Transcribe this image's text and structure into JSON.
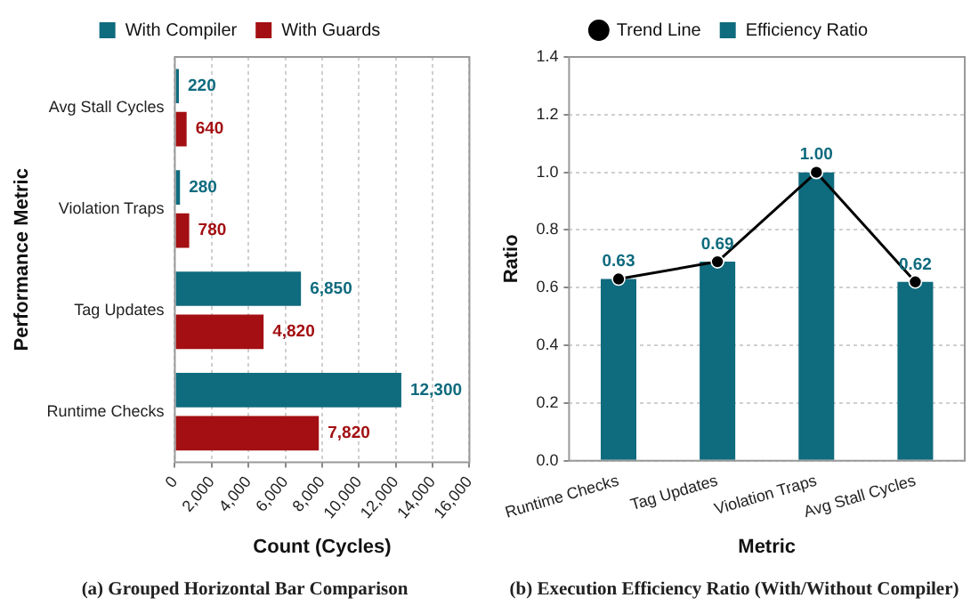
{
  "chart_data": [
    {
      "type": "bar",
      "orientation": "horizontal",
      "categories": [
        "Avg Stall Cycles",
        "Violation Traps",
        "Tag Updates",
        "Runtime Checks"
      ],
      "series": [
        {
          "name": "With Compiler",
          "color": "#0f6b7e",
          "values": [
            220,
            280,
            6850,
            12300
          ],
          "value_labels": [
            "220",
            "280",
            "6,850",
            "12,300"
          ]
        },
        {
          "name": "With Guards",
          "color": "#a30f12",
          "values": [
            640,
            780,
            4820,
            7820
          ],
          "value_labels": [
            "640",
            "780",
            "4,820",
            "7,820"
          ]
        }
      ],
      "xlim": [
        0,
        16000
      ],
      "xticks": [
        0,
        {
          "value": 2000,
          "label": "2,000"
        },
        {
          "value": 4000,
          "label": "4,000"
        },
        {
          "value": 6000,
          "label": "6,000"
        },
        {
          "value": 8000,
          "label": "8,000"
        },
        {
          "value": 10000,
          "label": "10,000"
        },
        {
          "value": 12000,
          "label": "12,000"
        },
        {
          "value": 14000,
          "label": "14,000"
        },
        {
          "value": 16000,
          "label": "16,000"
        }
      ],
      "xlabel": "Count (Cycles)",
      "ylabel": "Performance Metric",
      "grid": "x",
      "legend": "top",
      "annotations": [
        "(a)  Grouped Horizontal Bar Comparison"
      ]
    },
    {
      "type": "bar",
      "categories": [
        "Runtime Checks",
        "Tag Updates",
        "Violation Traps",
        "Avg Stall Cycles"
      ],
      "series": [
        {
          "name": "Efficiency Ratio",
          "color": "#0f6b7e",
          "values": [
            0.63,
            0.69,
            1.0,
            0.62
          ],
          "value_labels": [
            "0.63",
            "0.69",
            "1.00",
            "0.62"
          ]
        },
        {
          "name": "Trend Line",
          "type": "line",
          "color": "#000000",
          "values": [
            0.63,
            0.69,
            1.0,
            0.62
          ]
        }
      ],
      "ylim": [
        0,
        1.4
      ],
      "yticks": [
        {
          "value": 0,
          "label": "0.0"
        },
        {
          "value": 0.2,
          "label": "0.2"
        },
        {
          "value": 0.4,
          "label": "0.4"
        },
        {
          "value": 0.6,
          "label": "0.6"
        },
        {
          "value": 0.8,
          "label": "0.8"
        },
        {
          "value": 1.0,
          "label": "1.0"
        },
        {
          "value": 1.2,
          "label": "1.2"
        },
        {
          "value": 1.4,
          "label": "1.4"
        }
      ],
      "xlabel": "Metric",
      "ylabel": "Ratio",
      "grid": "y",
      "legend": "top",
      "marker": "circle",
      "annotations": [
        "(b)  Execution Efficiency Ratio (With/Without Compiler)"
      ]
    }
  ]
}
